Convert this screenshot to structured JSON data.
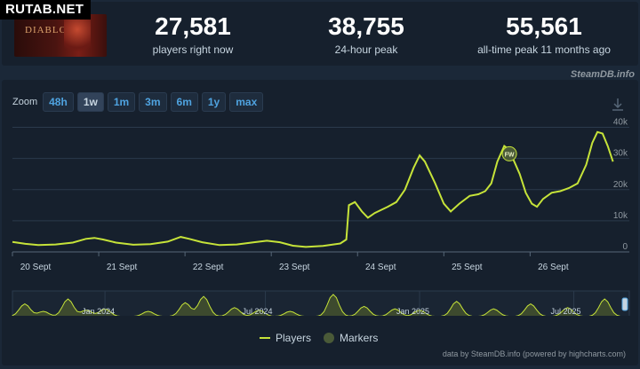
{
  "watermark": "RUTAB.NET",
  "game": {
    "logo_text": "DIABLO IV"
  },
  "stats": [
    {
      "value": "27,581",
      "label": "players right now"
    },
    {
      "value": "38,755",
      "label": "24-hour peak"
    },
    {
      "value": "55,561",
      "label": "all-time peak 11 months ago"
    }
  ],
  "credit_top": "SteamDB.info",
  "zoom": {
    "label": "Zoom",
    "buttons": [
      "48h",
      "1w",
      "1m",
      "3m",
      "6m",
      "1y",
      "max"
    ],
    "active": "1w"
  },
  "legend": {
    "players": "Players",
    "markers": "Markers"
  },
  "credit_bottom": "data by SteamDB.info (powered by highcharts.com)",
  "colors": {
    "line": "#c6e339",
    "background": "#1b2838",
    "panel": "#16202d",
    "marker": "#4a5a38",
    "zoom_text": "#4fa3e0"
  },
  "chart_data": {
    "type": "line",
    "title": "",
    "xlabel": "",
    "ylabel": "",
    "x_ticks": [
      "20 Sept",
      "21 Sept",
      "22 Sept",
      "23 Sept",
      "24 Sept",
      "25 Sept",
      "26 Sept"
    ],
    "y_ticks": [
      "0",
      "10k",
      "20k",
      "30k",
      "40k"
    ],
    "ylim": [
      0,
      45000
    ],
    "xlim": [
      0,
      7.15
    ],
    "grid": true,
    "series": [
      {
        "name": "Players",
        "x_unit": "days since 20 Sept 00:00",
        "points": [
          [
            0.0,
            3200
          ],
          [
            0.15,
            2600
          ],
          [
            0.3,
            2200
          ],
          [
            0.5,
            2400
          ],
          [
            0.7,
            3000
          ],
          [
            0.85,
            4200
          ],
          [
            0.95,
            4500
          ],
          [
            1.05,
            4000
          ],
          [
            1.2,
            3000
          ],
          [
            1.4,
            2300
          ],
          [
            1.6,
            2500
          ],
          [
            1.8,
            3300
          ],
          [
            1.95,
            4800
          ],
          [
            2.05,
            4200
          ],
          [
            2.2,
            3100
          ],
          [
            2.4,
            2200
          ],
          [
            2.6,
            2400
          ],
          [
            2.8,
            3100
          ],
          [
            2.95,
            3600
          ],
          [
            3.1,
            3100
          ],
          [
            3.25,
            2000
          ],
          [
            3.4,
            1600
          ],
          [
            3.6,
            1900
          ],
          [
            3.8,
            2700
          ],
          [
            3.87,
            4000
          ],
          [
            3.9,
            15000
          ],
          [
            3.97,
            16000
          ],
          [
            4.05,
            13000
          ],
          [
            4.12,
            11000
          ],
          [
            4.2,
            12500
          ],
          [
            4.35,
            14500
          ],
          [
            4.45,
            16000
          ],
          [
            4.55,
            20000
          ],
          [
            4.65,
            27000
          ],
          [
            4.72,
            31000
          ],
          [
            4.78,
            29000
          ],
          [
            4.9,
            22000
          ],
          [
            5.0,
            15500
          ],
          [
            5.08,
            13000
          ],
          [
            5.18,
            15500
          ],
          [
            5.3,
            18000
          ],
          [
            5.4,
            18500
          ],
          [
            5.48,
            19500
          ],
          [
            5.55,
            22000
          ],
          [
            5.62,
            29000
          ],
          [
            5.7,
            34000
          ],
          [
            5.75,
            33000
          ],
          [
            5.8,
            30000
          ],
          [
            5.88,
            25000
          ],
          [
            5.95,
            19000
          ],
          [
            6.02,
            15500
          ],
          [
            6.08,
            14500
          ],
          [
            6.15,
            17000
          ],
          [
            6.25,
            19000
          ],
          [
            6.35,
            19500
          ],
          [
            6.45,
            20500
          ],
          [
            6.55,
            22000
          ],
          [
            6.65,
            28000
          ],
          [
            6.72,
            35000
          ],
          [
            6.78,
            38500
          ],
          [
            6.84,
            38000
          ],
          [
            6.9,
            34000
          ],
          [
            6.96,
            29000
          ]
        ]
      }
    ],
    "markers": [
      {
        "label": "FW",
        "x": 5.76,
        "y": 31500
      }
    ],
    "navigator": {
      "ticks": [
        "Jan 2024",
        "Jul 2024",
        "Jan 2025",
        "Jul 2025"
      ]
    }
  }
}
